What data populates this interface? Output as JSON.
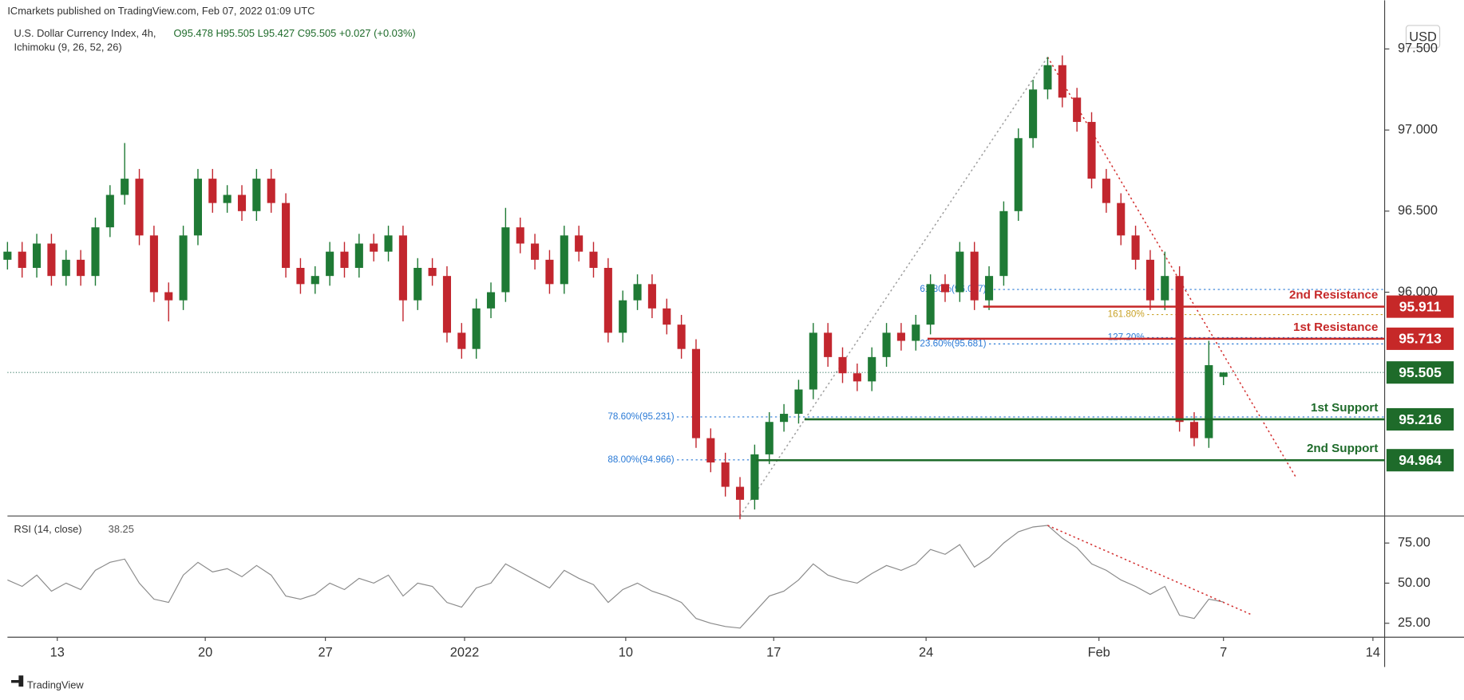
{
  "header": {
    "publisher": "ICmarkets published on TradingView.com, Feb 07, 2022 01:09 UTC",
    "currency": "USD",
    "brand": "TradingView"
  },
  "chart_data": {
    "type": "candlestick",
    "title": "U.S. Dollar Currency Index, 4h,",
    "indicator": "Ichimoku (9, 26, 52, 26)",
    "ohlc_legend": "O95.478 H95.505 L95.427 C95.505 +0.027 (+0.03%)",
    "up_color": "#1f7a35",
    "down_color": "#c2262e",
    "xlim": [
      0,
      94
    ],
    "xticks": [
      {
        "value": 3.4,
        "label": "13"
      },
      {
        "value": 13.5,
        "label": "20"
      },
      {
        "value": 21.7,
        "label": "27"
      },
      {
        "value": 31.2,
        "label": "2022"
      },
      {
        "value": 42.2,
        "label": "10"
      },
      {
        "value": 52.3,
        "label": "17"
      },
      {
        "value": 62.7,
        "label": "24"
      },
      {
        "value": 74.5,
        "label": "Feb"
      },
      {
        "value": 83.0,
        "label": "7"
      },
      {
        "value": 93.2,
        "label": "14"
      }
    ],
    "ylim": [
      94.62,
      97.8
    ],
    "yticks": [
      {
        "value": 96,
        "label": "96.000"
      },
      {
        "value": 96.5,
        "label": "96.500"
      },
      {
        "value": 97,
        "label": "97.000"
      },
      {
        "value": 97.5,
        "label": "97.500"
      }
    ],
    "ohlc": [
      [
        96.2,
        96.31,
        96.14,
        96.25
      ],
      [
        96.25,
        96.31,
        96.09,
        96.15
      ],
      [
        96.15,
        96.36,
        96.09,
        96.3
      ],
      [
        96.3,
        96.36,
        96.04,
        96.1
      ],
      [
        96.1,
        96.26,
        96.04,
        96.2
      ],
      [
        96.2,
        96.26,
        96.04,
        96.1
      ],
      [
        96.1,
        96.46,
        96.04,
        96.4
      ],
      [
        96.4,
        96.66,
        96.34,
        96.6
      ],
      [
        96.6,
        96.92,
        96.54,
        96.7
      ],
      [
        96.7,
        96.76,
        96.29,
        96.35
      ],
      [
        96.35,
        96.41,
        95.94,
        96.0
      ],
      [
        96.0,
        96.06,
        95.82,
        95.95
      ],
      [
        95.95,
        96.41,
        95.89,
        96.35
      ],
      [
        96.35,
        96.76,
        96.29,
        96.7
      ],
      [
        96.7,
        96.76,
        96.49,
        96.55
      ],
      [
        96.55,
        96.66,
        96.49,
        96.6
      ],
      [
        96.6,
        96.66,
        96.44,
        96.5
      ],
      [
        96.5,
        96.76,
        96.44,
        96.7
      ],
      [
        96.7,
        96.76,
        96.49,
        96.55
      ],
      [
        96.55,
        96.61,
        96.09,
        96.15
      ],
      [
        96.15,
        96.21,
        95.99,
        96.05
      ],
      [
        96.05,
        96.16,
        95.99,
        96.1
      ],
      [
        96.1,
        96.31,
        96.04,
        96.25
      ],
      [
        96.25,
        96.31,
        96.09,
        96.15
      ],
      [
        96.15,
        96.36,
        96.09,
        96.3
      ],
      [
        96.3,
        96.36,
        96.19,
        96.25
      ],
      [
        96.25,
        96.41,
        96.19,
        96.35
      ],
      [
        96.35,
        96.41,
        95.82,
        95.95
      ],
      [
        95.95,
        96.21,
        95.89,
        96.15
      ],
      [
        96.15,
        96.21,
        96.04,
        96.1
      ],
      [
        96.1,
        96.16,
        95.69,
        95.75
      ],
      [
        95.75,
        95.81,
        95.59,
        95.65
      ],
      [
        95.65,
        95.96,
        95.59,
        95.9
      ],
      [
        95.9,
        96.06,
        95.84,
        96.0
      ],
      [
        96.0,
        96.52,
        95.94,
        96.4
      ],
      [
        96.4,
        96.46,
        96.24,
        96.3
      ],
      [
        96.3,
        96.36,
        96.14,
        96.2
      ],
      [
        96.2,
        96.26,
        95.99,
        96.05
      ],
      [
        96.05,
        96.41,
        95.99,
        96.35
      ],
      [
        96.35,
        96.41,
        96.19,
        96.25
      ],
      [
        96.25,
        96.31,
        96.09,
        96.15
      ],
      [
        96.15,
        96.21,
        95.69,
        95.75
      ],
      [
        95.75,
        96.01,
        95.69,
        95.95
      ],
      [
        95.95,
        96.11,
        95.89,
        96.05
      ],
      [
        96.05,
        96.11,
        95.84,
        95.9
      ],
      [
        95.9,
        95.96,
        95.74,
        95.8
      ],
      [
        95.8,
        95.86,
        95.59,
        95.65
      ],
      [
        95.65,
        95.71,
        95.04,
        95.1
      ],
      [
        95.1,
        95.16,
        94.89,
        94.95
      ],
      [
        94.95,
        95.01,
        94.74,
        94.8
      ],
      [
        94.8,
        94.86,
        94.6,
        94.72
      ],
      [
        94.72,
        95.06,
        94.66,
        95.0
      ],
      [
        95.0,
        95.26,
        94.94,
        95.2
      ],
      [
        95.2,
        95.31,
        95.14,
        95.25
      ],
      [
        95.25,
        95.46,
        95.19,
        95.4
      ],
      [
        95.4,
        95.81,
        95.34,
        95.75
      ],
      [
        95.75,
        95.81,
        95.54,
        95.6
      ],
      [
        95.6,
        95.66,
        95.44,
        95.5
      ],
      [
        95.5,
        95.56,
        95.39,
        95.45
      ],
      [
        95.45,
        95.66,
        95.39,
        95.6
      ],
      [
        95.6,
        95.81,
        95.54,
        95.75
      ],
      [
        95.75,
        95.81,
        95.64,
        95.7
      ],
      [
        95.7,
        95.86,
        95.64,
        95.8
      ],
      [
        95.8,
        96.11,
        95.74,
        96.05
      ],
      [
        96.05,
        96.11,
        95.94,
        96.0
      ],
      [
        96.0,
        96.31,
        95.94,
        96.25
      ],
      [
        96.25,
        96.31,
        95.89,
        95.95
      ],
      [
        95.95,
        96.16,
        95.89,
        96.1
      ],
      [
        96.1,
        96.56,
        96.04,
        96.5
      ],
      [
        96.5,
        97.01,
        96.44,
        96.95
      ],
      [
        96.95,
        97.31,
        96.89,
        97.25
      ],
      [
        97.25,
        97.45,
        97.19,
        97.4
      ],
      [
        97.4,
        97.46,
        97.14,
        97.2
      ],
      [
        97.2,
        97.26,
        96.99,
        97.05
      ],
      [
        97.05,
        97.11,
        96.64,
        96.7
      ],
      [
        96.7,
        96.76,
        96.49,
        96.55
      ],
      [
        96.55,
        96.61,
        96.29,
        96.35
      ],
      [
        96.35,
        96.41,
        96.14,
        96.2
      ],
      [
        96.2,
        96.26,
        95.89,
        95.95
      ],
      [
        95.95,
        96.25,
        95.89,
        96.1
      ],
      [
        96.1,
        96.16,
        95.14,
        95.2
      ],
      [
        95.2,
        95.26,
        95.05,
        95.1
      ],
      [
        95.1,
        95.7,
        95.04,
        95.55
      ],
      [
        95.478,
        95.505,
        95.427,
        95.505
      ]
    ],
    "last_price": {
      "value": 95.505,
      "color": "#1e6b2a"
    },
    "levels": [
      {
        "label": "2nd Resistance",
        "value": 95.911,
        "start": 66.6,
        "color": "#c62828"
      },
      {
        "label": "1st Resistance",
        "value": 95.713,
        "start": 62.8,
        "color": "#c62828"
      },
      {
        "label": "1st Support",
        "value": 95.216,
        "start": 54.4,
        "color": "#1e6b2a"
      },
      {
        "label": "2nd Support",
        "value": 94.964,
        "start": 51.1,
        "color": "#1e6b2a"
      }
    ],
    "fibs": [
      {
        "label": "61.80%(96.017)",
        "value": 96.017,
        "start": 67,
        "color": "#2a7ad6"
      },
      {
        "label": "23.60%(95.681)",
        "value": 95.681,
        "start": 67,
        "color": "#2a7ad6"
      },
      {
        "label": "78.60%(95.231)",
        "value": 95.231,
        "start": 45.7,
        "color": "#2a7ad6"
      },
      {
        "label": "88.00%(94.966)",
        "value": 94.966,
        "start": 45.7,
        "color": "#2a7ad6"
      },
      {
        "label": "161.80%",
        "value": 95.862,
        "start": 77.8,
        "color": "#c9a227"
      },
      {
        "label": "127.20%",
        "value": 95.72,
        "start": 77.8,
        "color": "#2a7ad6"
      }
    ],
    "trendlines": [
      {
        "x": [
          50,
          71
        ],
        "y": [
          94.62,
          97.45
        ],
        "color": "#9e9e9e"
      },
      {
        "x": [
          71,
          88
        ],
        "y": [
          97.45,
          94.85
        ],
        "color": "#d32f2f"
      }
    ],
    "rsi": {
      "name": "RSI (14, close)",
      "color": "#8a8a8a",
      "ylim": [
        16.3,
        90.7
      ],
      "yticks": [
        {
          "value": 25,
          "label": "25.00"
        },
        {
          "value": 50,
          "label": "50.00"
        },
        {
          "value": 75,
          "label": "75.00"
        }
      ],
      "values": [
        52,
        48,
        55,
        45,
        50,
        46,
        58,
        63,
        65,
        50,
        40,
        38,
        55,
        63,
        57,
        59,
        54,
        61,
        55,
        42,
        40,
        43,
        50,
        46,
        53,
        50,
        55,
        42,
        50,
        48,
        38,
        35,
        47,
        50,
        62,
        57,
        52,
        47,
        58,
        53,
        49,
        38,
        46,
        50,
        45,
        42,
        38,
        28,
        25,
        23,
        22,
        32,
        42,
        45,
        52,
        62,
        55,
        52,
        50,
        56,
        61,
        58,
        62,
        71,
        68,
        74,
        60,
        66,
        75,
        82,
        85,
        86,
        78,
        72,
        62,
        58,
        52,
        48,
        43,
        48,
        30,
        28,
        40,
        38.25
      ],
      "trendline": {
        "x": [
          71,
          85
        ],
        "y": [
          86,
          30
        ],
        "color": "#d32f2f"
      }
    }
  }
}
